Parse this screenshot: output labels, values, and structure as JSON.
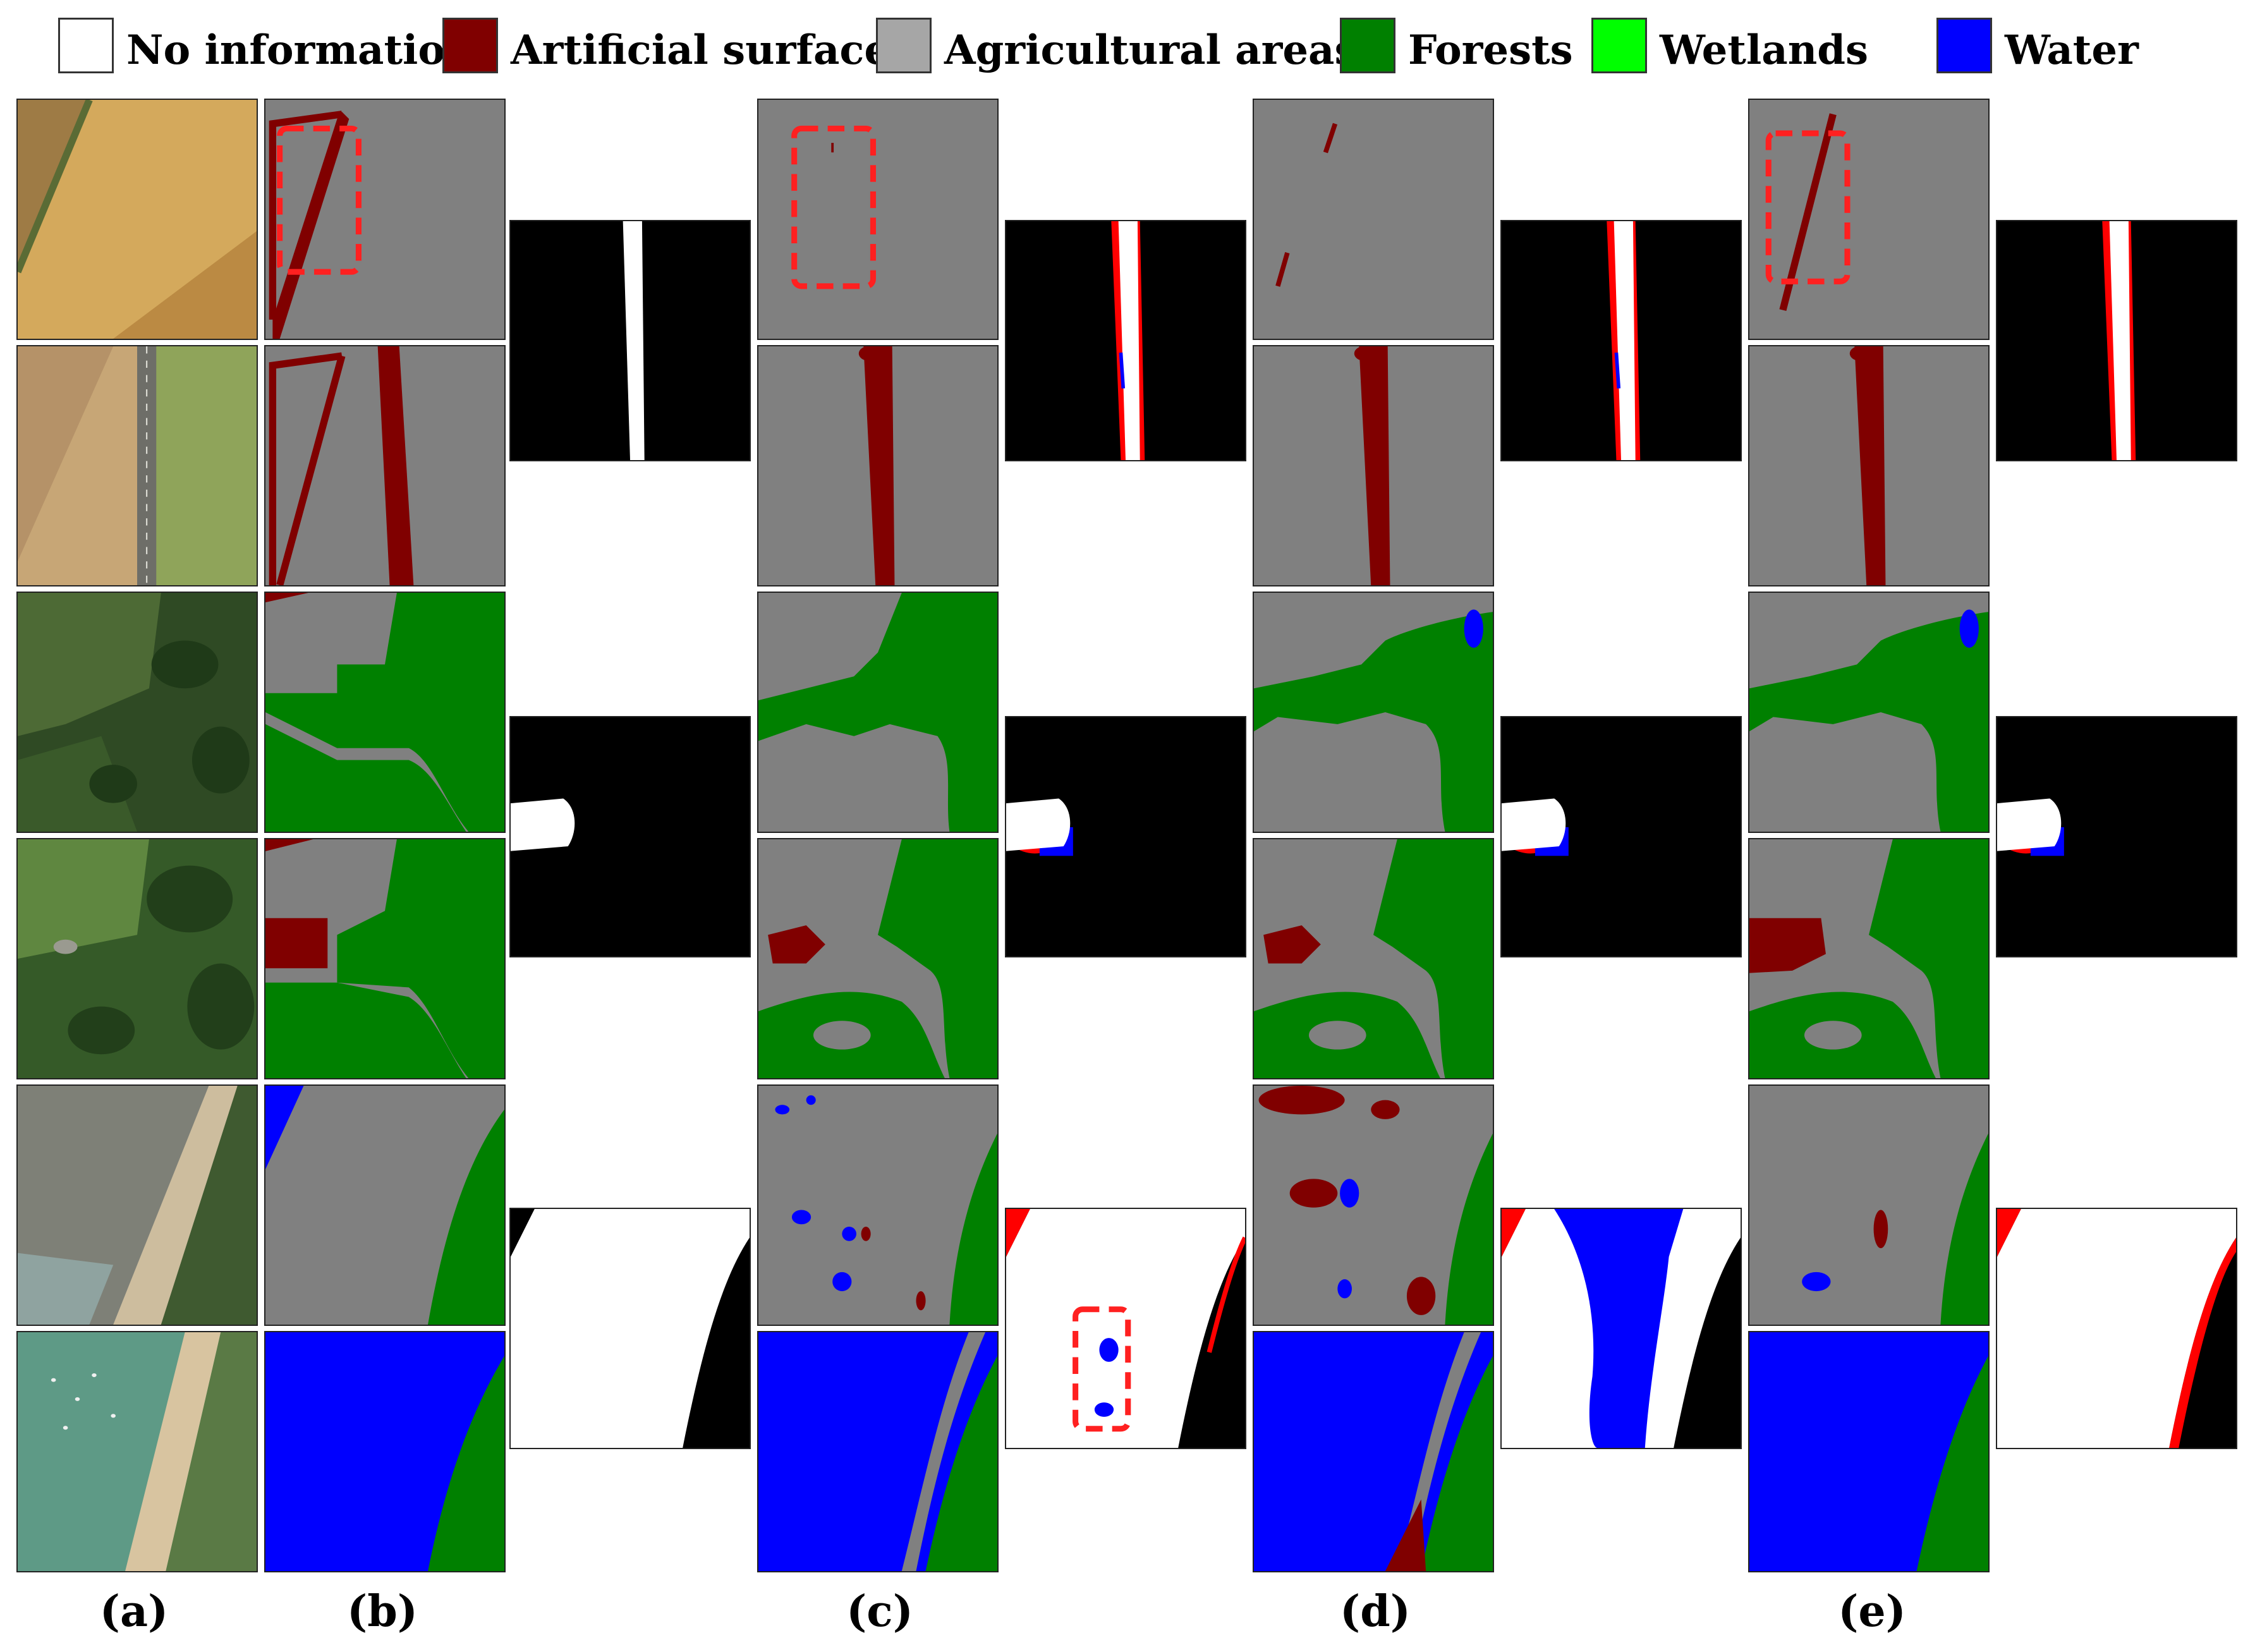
{
  "legend": [
    {
      "label": "No information",
      "color": "#ffffff"
    },
    {
      "label": "Artificial surfaces",
      "color": "#800000"
    },
    {
      "label": "Agricultural areas",
      "color": "#a6a6a6"
    },
    {
      "label": "Forests",
      "color": "#008000"
    },
    {
      "label": "Wetlands",
      "color": "#00ff00"
    },
    {
      "label": "Water",
      "color": "#0000ff"
    }
  ],
  "colors": {
    "artificial": "#800000",
    "agricultural": "#808080",
    "forest": "#008000",
    "water": "#0000ff",
    "change": "#ffffff",
    "no_change": "#000000",
    "error": "#ff0000",
    "highlight": "#ff2020"
  },
  "column_labels": [
    "(a)",
    "(b)",
    "(c)",
    "(d)",
    "(e)"
  ]
}
